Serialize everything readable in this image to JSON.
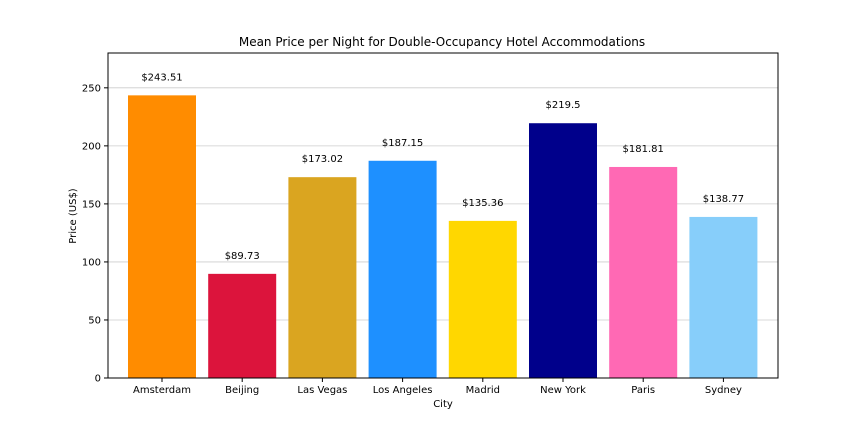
{
  "chart_data": {
    "type": "bar",
    "title": "Mean Price per Night for Double-Occupancy Hotel Accommodations",
    "xlabel": "City",
    "ylabel": "Price (US$)",
    "ylim": [
      0,
      280
    ],
    "yticks": [
      0,
      50,
      100,
      150,
      200,
      250
    ],
    "grid": "horizontal",
    "categories": [
      "Amsterdam",
      "Beijing",
      "Las Vegas",
      "Los Angeles",
      "Madrid",
      "New York",
      "Paris",
      "Sydney"
    ],
    "values": [
      243.51,
      89.73,
      173.02,
      187.15,
      135.36,
      219.5,
      181.81,
      138.77
    ],
    "data_labels": [
      "$243.51",
      "$89.73",
      "$173.02",
      "$187.15",
      "$135.36",
      "$219.5",
      "$181.81",
      "$138.77"
    ],
    "colors": [
      "#ff8c00",
      "#dc143c",
      "#daa520",
      "#1e90ff",
      "#ffd700",
      "#00008b",
      "#ff69b4",
      "#87cefa"
    ]
  }
}
